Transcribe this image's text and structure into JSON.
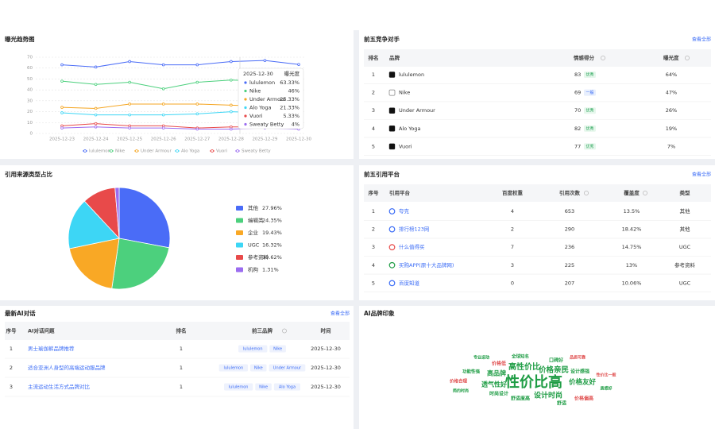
{
  "chart_data": [
    {
      "type": "line",
      "title": "曝光趋势图",
      "x": [
        "2025-12-23",
        "2025-12-24",
        "2025-12-25",
        "2025-12-26",
        "2025-12-27",
        "2025-12-28",
        "2025-12-29",
        "2025-12-30"
      ],
      "ylim": [
        0,
        70
      ],
      "yticks": [
        0,
        10,
        20,
        30,
        40,
        50,
        60,
        70
      ],
      "grid": true,
      "tooltip": {
        "column": "曝光度"
      },
      "series": [
        {
          "name": "lululemon",
          "color": "#4a6cf7",
          "values": [
            63,
            61,
            66,
            63,
            63,
            66,
            67,
            63.33
          ],
          "tooltip_label": "63.33%"
        },
        {
          "name": "Nike",
          "color": "#4cd07d",
          "values": [
            48,
            45,
            47,
            41,
            47,
            49,
            48,
            46
          ],
          "tooltip_label": "46%"
        },
        {
          "name": "Under Armour",
          "color": "#f5a623",
          "values": [
            24,
            23,
            27,
            27,
            27,
            26,
            25,
            25.33
          ],
          "tooltip_label": "25.33%"
        },
        {
          "name": "Alo Yoga",
          "color": "#3dd6f5",
          "values": [
            19,
            17,
            17,
            17,
            18,
            20,
            19,
            21.33
          ],
          "tooltip_label": "21.33%"
        },
        {
          "name": "Vuori",
          "color": "#e84a4a",
          "values": [
            7,
            9,
            7,
            7,
            5,
            6,
            6,
            5.33
          ],
          "tooltip_label": "5.33%"
        },
        {
          "name": "Sweaty Betty",
          "color": "#9b6cf0",
          "values": [
            5,
            6,
            5,
            5,
            4,
            4,
            5,
            4
          ],
          "tooltip_label": "4%"
        }
      ]
    },
    {
      "type": "pie",
      "title": "引用来源类型占比",
      "categories": [
        "其他",
        "编辑类",
        "企业",
        "UGC",
        "参考资料",
        "机构"
      ],
      "values": [
        27.96,
        24.35,
        19.43,
        16.32,
        10.62,
        1.31
      ],
      "value_labels": [
        "27.96%",
        "24.35%",
        "19.43%",
        "16.32%",
        "10.62%",
        "1.31%"
      ],
      "colors": [
        "#4a6cf7",
        "#4cd07d",
        "#f9a825",
        "#3dd6f5",
        "#e84a4a",
        "#9b6cf0"
      ]
    }
  ],
  "competitors": {
    "title": "前五竞争对手",
    "link": "查看全部",
    "columns": [
      "排名",
      "品牌",
      "情感得分",
      "曝光度"
    ],
    "rows": [
      [
        "1",
        "lululemon",
        "83",
        "优秀",
        "64%"
      ],
      [
        "2",
        "Nike",
        "69",
        "一般",
        "47%"
      ],
      [
        "3",
        "Under Armour",
        "70",
        "优秀",
        "26%"
      ],
      [
        "4",
        "Alo Yoga",
        "82",
        "优秀",
        "19%"
      ],
      [
        "5",
        "Vuori",
        "77",
        "优秀",
        "7%"
      ]
    ]
  },
  "platforms": {
    "title": "前五引用平台",
    "link": "查看全部",
    "columns": [
      "序号",
      "引用平台",
      "百度权重",
      "引用次数",
      "覆盖度",
      "类型"
    ],
    "rows": [
      [
        "1",
        "夸克",
        "4",
        "653",
        "13.5%",
        "其他"
      ],
      [
        "2",
        "排行榜123网",
        "2",
        "290",
        "18.42%",
        "其他"
      ],
      [
        "3",
        "什么值得买",
        "7",
        "236",
        "14.75%",
        "UGC"
      ],
      [
        "4",
        "买购APP(原十大品牌网)",
        "3",
        "225",
        "13%",
        "参考资料"
      ],
      [
        "5",
        "百度知道",
        "0",
        "207",
        "10.06%",
        "UGC"
      ]
    ]
  },
  "dialogs": {
    "title": "最新AI对话",
    "link": "查看全部",
    "columns": [
      "序号",
      "AI对话问题",
      "排名",
      "前三品牌",
      "时间"
    ],
    "rows": [
      [
        "1",
        "男士瑜伽裤品牌推荐",
        "1",
        [
          "lululemon",
          "Nike"
        ],
        "2025-12-30"
      ],
      [
        "2",
        "适合亚洲人身型的高端运动服品牌",
        "1",
        [
          "lululemon",
          "Nike",
          "Under Armour"
        ],
        "2025-12-30"
      ],
      [
        "3",
        "主流运动生活方式品牌对比",
        "1",
        [
          "lululemon",
          "Nike",
          "Alo Yoga"
        ],
        "2025-12-30"
      ]
    ]
  },
  "impression": {
    "title": "AI品牌印象",
    "words": [
      {
        "text": "性价比高",
        "color": "#1f9d45"
      },
      {
        "text": "高性价比",
        "color": "#1f9d45"
      },
      {
        "text": "价格亲民",
        "color": "#1f9d45"
      },
      {
        "text": "设计时尚",
        "color": "#1f9d45"
      },
      {
        "text": "价格友好",
        "color": "#1f9d45"
      },
      {
        "text": "透气性好",
        "color": "#1f9d45"
      },
      {
        "text": "高品牌",
        "color": "#1f9d45"
      },
      {
        "text": "舒适",
        "color": "#1f9d45"
      },
      {
        "text": "价格低",
        "color": "#e05050"
      },
      {
        "text": "价格偏高",
        "color": "#e05050"
      },
      {
        "text": "设计感强",
        "color": "#1f9d45"
      },
      {
        "text": "口碑好",
        "color": "#1f9d45"
      },
      {
        "text": "时尚设计",
        "color": "#1f9d45"
      },
      {
        "text": "舒适度高",
        "color": "#1f9d45"
      },
      {
        "text": "价格合理",
        "color": "#e05050"
      },
      {
        "text": "功能性强",
        "color": "#1f9d45"
      },
      {
        "text": "专业运动",
        "color": "#1f9d45"
      },
      {
        "text": "品质可靠",
        "color": "#e05050"
      },
      {
        "text": "全球知名",
        "color": "#1f9d45"
      },
      {
        "text": "简约时尚",
        "color": "#1f9d45"
      },
      {
        "text": "质感好",
        "color": "#1f9d45"
      },
      {
        "text": "性价比一般",
        "color": "#e05050"
      }
    ]
  }
}
